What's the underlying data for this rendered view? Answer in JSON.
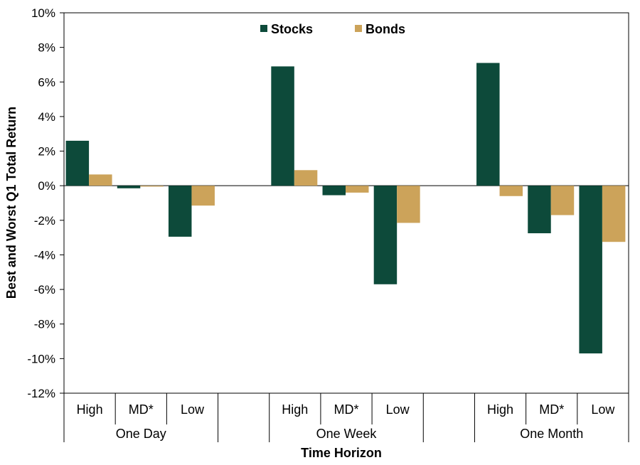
{
  "chart_data": {
    "type": "bar",
    "title": "",
    "ylabel": "Best and Worst Q1 Total Return",
    "xlabel": "Time Horizon",
    "ylim": [
      -12,
      10
    ],
    "yticks": [
      10,
      8,
      6,
      4,
      2,
      0,
      -2,
      -4,
      -6,
      -8,
      -10,
      -12
    ],
    "ytick_labels": [
      "10%",
      "8%",
      "6%",
      "4%",
      "2%",
      "0%",
      "-2%",
      "-4%",
      "-6%",
      "-8%",
      "-10%",
      "-12%"
    ],
    "groups": [
      {
        "label": "One Day",
        "categories": [
          "High",
          "MD*",
          "Low"
        ]
      },
      {
        "label": "One Week",
        "categories": [
          "High",
          "MD*",
          "Low"
        ]
      },
      {
        "label": "One Month",
        "categories": [
          "High",
          "MD*",
          "Low"
        ]
      }
    ],
    "series": [
      {
        "name": "Stocks",
        "color": "#0d4a3a",
        "values": [
          [
            2.6,
            -0.15,
            -2.95
          ],
          [
            6.9,
            -0.55,
            -5.7
          ],
          [
            7.1,
            -2.75,
            -9.7
          ]
        ]
      },
      {
        "name": "Bonds",
        "color": "#cca35a",
        "values": [
          [
            0.65,
            -0.05,
            -1.15
          ],
          [
            0.9,
            -0.4,
            -2.15
          ],
          [
            -0.6,
            -1.7,
            -3.25
          ]
        ]
      }
    ],
    "legend": "top-center",
    "grid": false
  }
}
